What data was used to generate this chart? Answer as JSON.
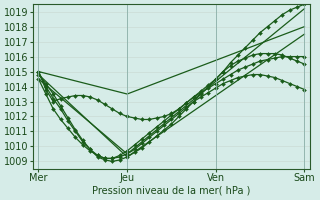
{
  "xlabel": "Pression niveau de la mer( hPa )",
  "xtick_labels": [
    "Mer",
    "Jeu",
    "Ven",
    "Sam"
  ],
  "xtick_positions": [
    0,
    48,
    96,
    144
  ],
  "xlim": [
    -3,
    147
  ],
  "ylim": [
    1008.5,
    1019.5
  ],
  "yticks": [
    1009,
    1010,
    1011,
    1012,
    1013,
    1014,
    1015,
    1016,
    1017,
    1018,
    1019
  ],
  "bg_color": "#d6ece8",
  "line_color": "#1a5c1a",
  "markersize": 2.0,
  "linewidth": 0.9,
  "series": [
    {
      "x": [
        0,
        4,
        8,
        12,
        16,
        20,
        24,
        28,
        32,
        36,
        40,
        44,
        48,
        52,
        56,
        60,
        64,
        68,
        72,
        76,
        80,
        84,
        88,
        92,
        96,
        100,
        104,
        108,
        112,
        116,
        120,
        124,
        128,
        132,
        136,
        140,
        144
      ],
      "y": [
        1015.0,
        1014.0,
        1013.2,
        1012.5,
        1011.7,
        1011.0,
        1010.3,
        1009.8,
        1009.3,
        1009.1,
        1009.0,
        1009.1,
        1009.3,
        1009.6,
        1009.9,
        1010.3,
        1010.7,
        1011.1,
        1011.5,
        1012.0,
        1012.5,
        1013.0,
        1013.5,
        1014.0,
        1014.5,
        1015.0,
        1015.6,
        1016.1,
        1016.6,
        1017.1,
        1017.6,
        1018.0,
        1018.4,
        1018.8,
        1019.1,
        1019.3,
        1019.5
      ],
      "marker": true
    },
    {
      "x": [
        0,
        4,
        8,
        12,
        16,
        20,
        24,
        28,
        32,
        36,
        40,
        44,
        48,
        52,
        56,
        60,
        64,
        68,
        72,
        76,
        80,
        84,
        88,
        92,
        96,
        100,
        104,
        108,
        112,
        116,
        120,
        124,
        128,
        132,
        136,
        140,
        144
      ],
      "y": [
        1015.0,
        1013.8,
        1013.0,
        1013.2,
        1013.3,
        1013.4,
        1013.4,
        1013.3,
        1013.1,
        1012.8,
        1012.5,
        1012.2,
        1012.0,
        1011.9,
        1011.8,
        1011.8,
        1011.9,
        1012.0,
        1012.2,
        1012.5,
        1012.9,
        1013.3,
        1013.7,
        1014.1,
        1014.5,
        1015.0,
        1015.4,
        1015.7,
        1015.9,
        1016.1,
        1016.2,
        1016.2,
        1016.2,
        1016.1,
        1015.9,
        1015.7,
        1015.5
      ],
      "marker": true
    },
    {
      "x": [
        0,
        48,
        144
      ],
      "y": [
        1015.0,
        1013.5,
        1018.0
      ],
      "marker": false
    },
    {
      "x": [
        0,
        48,
        144
      ],
      "y": [
        1014.5,
        1009.5,
        1019.2
      ],
      "marker": false
    },
    {
      "x": [
        0,
        48,
        144
      ],
      "y": [
        1014.8,
        1009.3,
        1017.5
      ],
      "marker": false
    },
    {
      "x": [
        0,
        4,
        8,
        12,
        16,
        20,
        24,
        28,
        32,
        36,
        40,
        44,
        48,
        52,
        56,
        60,
        64,
        68,
        72,
        76,
        80,
        84,
        88,
        92,
        96,
        100,
        104,
        108,
        112,
        116,
        120,
        124,
        128,
        132,
        136,
        140,
        144
      ],
      "y": [
        1014.5,
        1013.5,
        1012.5,
        1011.8,
        1011.2,
        1010.6,
        1010.1,
        1009.7,
        1009.4,
        1009.2,
        1009.2,
        1009.3,
        1009.5,
        1009.8,
        1010.2,
        1010.6,
        1011.0,
        1011.4,
        1011.8,
        1012.2,
        1012.6,
        1013.0,
        1013.3,
        1013.6,
        1013.9,
        1014.2,
        1014.4,
        1014.6,
        1014.7,
        1014.8,
        1014.8,
        1014.7,
        1014.6,
        1014.4,
        1014.2,
        1014.0,
        1013.8
      ],
      "marker": true
    },
    {
      "x": [
        0,
        4,
        8,
        12,
        16,
        20,
        24,
        28,
        32,
        36,
        40,
        44,
        48,
        52,
        56,
        60,
        64,
        68,
        72,
        76,
        80,
        84,
        88,
        92,
        96,
        100,
        104,
        108,
        112,
        116,
        120,
        124,
        128,
        132,
        136,
        140,
        144
      ],
      "y": [
        1014.8,
        1014.2,
        1013.5,
        1012.7,
        1011.9,
        1011.1,
        1010.4,
        1009.8,
        1009.4,
        1009.2,
        1009.2,
        1009.4,
        1009.7,
        1010.1,
        1010.5,
        1010.9,
        1011.3,
        1011.7,
        1012.1,
        1012.5,
        1012.9,
        1013.3,
        1013.6,
        1013.9,
        1014.2,
        1014.5,
        1014.8,
        1015.1,
        1015.3,
        1015.5,
        1015.7,
        1015.8,
        1015.9,
        1016.0,
        1016.0,
        1016.0,
        1016.0
      ],
      "marker": true
    }
  ]
}
